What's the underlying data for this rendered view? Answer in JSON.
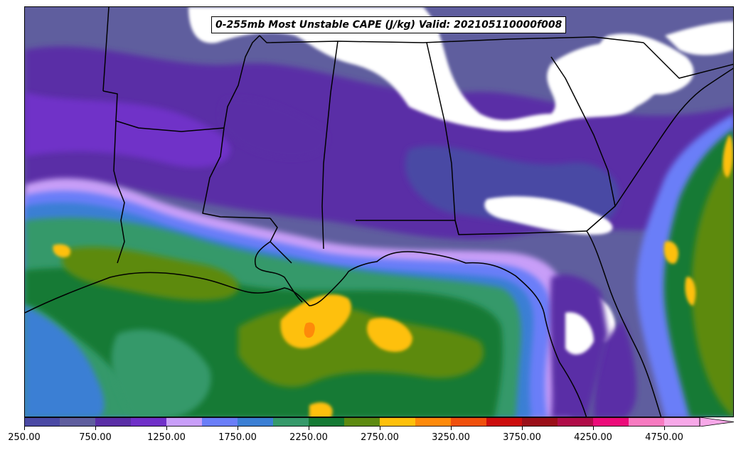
{
  "title": "0-255mb Most Unstable CAPE (J/kg) Valid: 202105110000f008",
  "colorbar": {
    "colors": [
      "#4a49a4",
      "#5f5e9e",
      "#5a2ea6",
      "#7030c8",
      "#c89ef8",
      "#6a7ef8",
      "#3b7fd4",
      "#35996a",
      "#147a34",
      "#5d8a10",
      "#fec00a",
      "#fe8a0a",
      "#f0500c",
      "#cc0d0d",
      "#9a0f18",
      "#b00c48",
      "#ec0b7a",
      "#f77ac0",
      "#f7a8e8"
    ],
    "tick_labels": [
      "250.00",
      "750.00",
      "1250.00",
      "1750.00",
      "2250.00",
      "2750.00",
      "3250.00",
      "3750.00",
      "4250.00",
      "4750.00"
    ],
    "extend": "max"
  }
}
